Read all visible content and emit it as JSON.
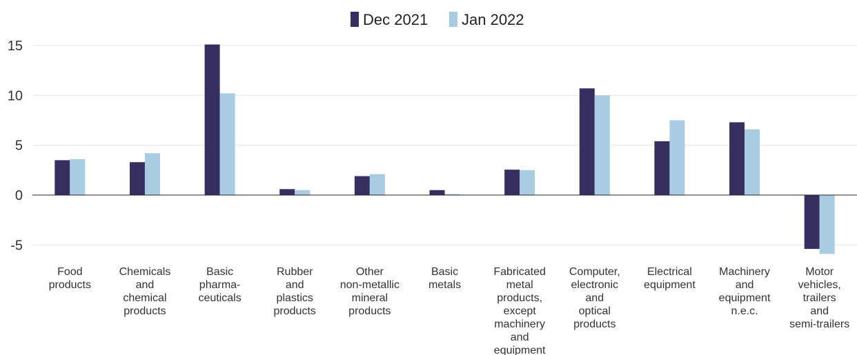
{
  "chart_data": {
    "type": "bar",
    "categories": [
      [
        "Food",
        "products"
      ],
      [
        "Chemicals",
        "and",
        "chemical",
        "products"
      ],
      [
        "Basic",
        "pharma-",
        "ceuticals"
      ],
      [
        "Rubber",
        "and",
        "plastics",
        "products"
      ],
      [
        "Other",
        "non-metallic",
        "mineral",
        "products"
      ],
      [
        "Basic",
        "metals"
      ],
      [
        "Fabricated",
        "metal",
        "products,",
        "except",
        "machinery",
        "and",
        "equipment"
      ],
      [
        "Computer,",
        "electronic",
        "and",
        "optical",
        "products"
      ],
      [
        "Electrical",
        "equipment"
      ],
      [
        "Machinery",
        "and",
        "equipment",
        "n.e.c."
      ],
      [
        "Motor",
        "vehicles,",
        "trailers",
        "and",
        "semi-trailers"
      ]
    ],
    "series": [
      {
        "name": "Dec 2021",
        "color": "#372f60",
        "values": [
          3.5,
          3.3,
          15.1,
          0.6,
          1.9,
          0.5,
          2.55,
          10.7,
          5.4,
          7.3,
          -5.4
        ]
      },
      {
        "name": "Jan 2022",
        "color": "#a9cce3",
        "values": [
          3.6,
          4.2,
          10.2,
          0.5,
          2.1,
          0.1,
          2.5,
          10.0,
          7.5,
          6.6,
          -5.9
        ]
      }
    ],
    "yticks": [
      "15",
      "10",
      "5",
      "0",
      "-5"
    ],
    "ylim": [
      -6,
      15
    ],
    "grid": true,
    "legend_position": "top-center"
  }
}
